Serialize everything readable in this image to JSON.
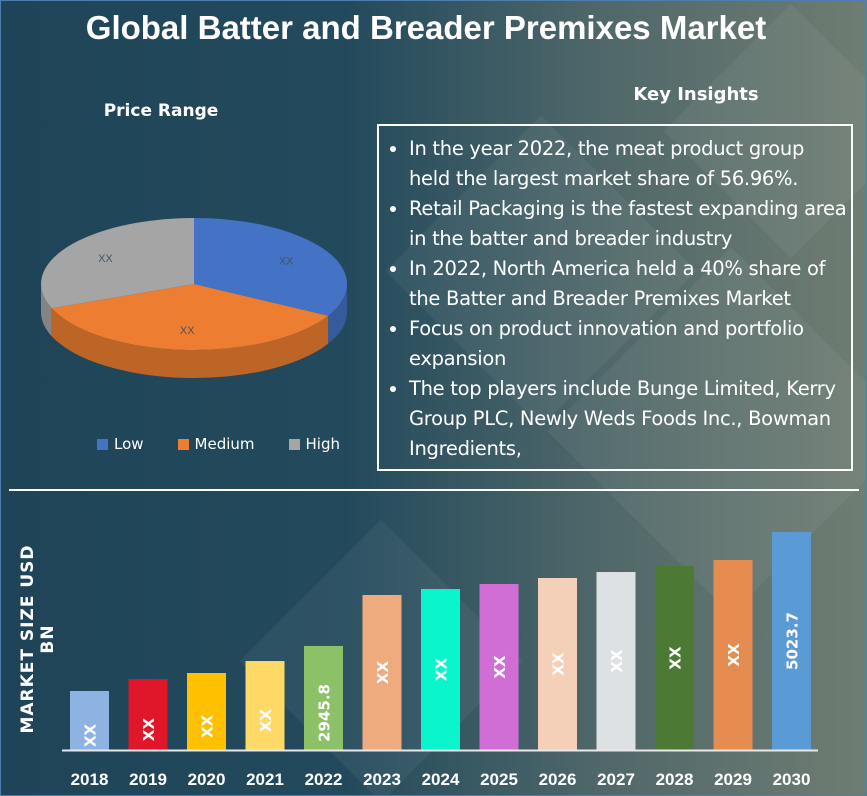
{
  "title": "Global Batter and Breader Premixes Market",
  "key_insights": {
    "title": "Key Insights",
    "items": [
      "In the year 2022, the meat product group held the largest market share of 56.96%.",
      "Retail Packaging is the fastest expanding area in the batter and breader industry",
      "In 2022, North America held a 40% share of the Batter and Breader Premixes Market",
      "Focus on product innovation and portfolio expansion",
      "The top players include Bunge Limited, Kerry Group PLC, Newly Weds Foods Inc., Bowman Ingredients,"
    ]
  },
  "chart_data": [
    {
      "type": "pie",
      "title": "Price Range",
      "categories": [
        "Low",
        "Medium",
        "High"
      ],
      "values": [
        33,
        36,
        31
      ],
      "labels": [
        "XX",
        "XX",
        "XX"
      ],
      "colors": [
        "#4472c4",
        "#ed7d31",
        "#a5a5a5"
      ],
      "legend": "bottom"
    },
    {
      "type": "bar",
      "title": "",
      "ylabel": "MARKET SIZE USD BN",
      "xlabel": "",
      "categories": [
        "2018",
        "2019",
        "2020",
        "2021",
        "2022",
        "2023",
        "2024",
        "2025",
        "2026",
        "2027",
        "2028",
        "2029",
        "2030"
      ],
      "values": [
        2125,
        2343,
        2453,
        2671,
        2945.8,
        3875,
        3984,
        4075,
        4185,
        4294,
        4403,
        4513,
        5023.7
      ],
      "labels": [
        "XX",
        "XX",
        "XX",
        "XX",
        "2945.8",
        "XX",
        "XX",
        "XX",
        "XX",
        "XX",
        "XX",
        "XX",
        "5023.7"
      ],
      "colors": [
        "#8db3e2",
        "#e0162b",
        "#ffc000",
        "#ffd966",
        "#8cc168",
        "#eeab7e",
        "#0af5cc",
        "#d06ed6",
        "#f4d0b8",
        "#dde1e4",
        "#4c7a35",
        "#e58c50",
        "#5b9bd5"
      ],
      "ylim": [
        1049,
        5023.7
      ],
      "grid": false
    }
  ]
}
